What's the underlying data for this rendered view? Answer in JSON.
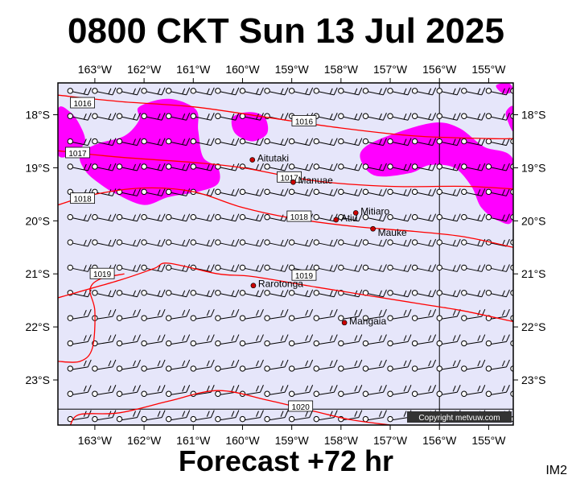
{
  "title": "0800 CKT Sun 13 Jul 2025",
  "subtitle": "Forecast +72 hr",
  "corner_label": "IM2",
  "copyright": "Copyright metvuw.com",
  "colors": {
    "sea": "#e6e6fa",
    "rain": "#ff00ff",
    "isobar": "#ff0000",
    "barb": "#000000",
    "place": "#cc0000"
  },
  "axes": {
    "lon_labels": [
      "163°W",
      "162°W",
      "161°W",
      "160°W",
      "159°W",
      "158°W",
      "157°W",
      "156°W",
      "155°W"
    ],
    "lat_labels": [
      "18°S",
      "19°S",
      "20°S",
      "21°S",
      "22°S",
      "23°S"
    ],
    "lon_range": [
      -163.75,
      -154.5
    ],
    "lat_range": [
      -17.4,
      -23.85
    ]
  },
  "places": [
    {
      "name": "Aitutaki",
      "lon": -159.8,
      "lat": -18.85
    },
    {
      "name": "Manuae",
      "lon": -158.97,
      "lat": -19.27
    },
    {
      "name": "Mitiaro",
      "lon": -157.7,
      "lat": -19.85
    },
    {
      "name": "Atiu",
      "lon": -158.1,
      "lat": -19.98
    },
    {
      "name": "Mauke",
      "lon": -157.35,
      "lat": -20.15
    },
    {
      "name": "Rarotonga",
      "lon": -159.78,
      "lat": -21.22
    },
    {
      "name": "Mangaia",
      "lon": -157.93,
      "lat": -21.92
    }
  ],
  "isobars": [
    {
      "label": "1016",
      "points": [
        [
          -163.75,
          -17.63
        ],
        [
          -162.5,
          -17.75
        ],
        [
          -161,
          -17.85
        ],
        [
          -159.5,
          -18.05
        ],
        [
          -158,
          -18.25
        ],
        [
          -156.5,
          -18.4
        ],
        [
          -155,
          -18.45
        ],
        [
          -154.5,
          -18.45
        ]
      ]
    },
    {
      "label": "1017",
      "points": [
        [
          -163.75,
          -18.68
        ],
        [
          -162.5,
          -18.8
        ],
        [
          -161,
          -18.9
        ],
        [
          -160,
          -19.0
        ],
        [
          -158.5,
          -19.25
        ],
        [
          -157,
          -19.35
        ],
        [
          -155.5,
          -19.35
        ],
        [
          -154.5,
          -19.4
        ]
      ]
    },
    {
      "label": "1018",
      "points": [
        [
          -163.75,
          -19.7
        ],
        [
          -163,
          -19.5
        ],
        [
          -162,
          -19.38
        ],
        [
          -161,
          -19.45
        ],
        [
          -160,
          -19.75
        ],
        [
          -159,
          -19.95
        ],
        [
          -157.8,
          -20.1
        ],
        [
          -156.5,
          -20.2
        ],
        [
          -155.5,
          -20.3
        ],
        [
          -154.5,
          -20.5
        ]
      ]
    },
    {
      "label": "1019",
      "points": [
        [
          -163.75,
          -21.45
        ],
        [
          -162.5,
          -21.12
        ],
        [
          -161.8,
          -20.9
        ],
        [
          -161.5,
          -20.8
        ],
        [
          -160.5,
          -21.0
        ],
        [
          -159.8,
          -21.05
        ],
        [
          -158.5,
          -21.25
        ],
        [
          -157.5,
          -21.4
        ],
        [
          -156.5,
          -21.55
        ],
        [
          -155.5,
          -21.7
        ],
        [
          -154.5,
          -21.9
        ]
      ]
    },
    {
      "label": "1020",
      "points": [
        [
          -163.75,
          -22.65
        ],
        [
          -163.3,
          -22.65
        ],
        [
          -163.05,
          -22.4
        ],
        [
          -163.0,
          -21.7
        ],
        [
          -163.1,
          -21.3
        ],
        [
          -162.9,
          -21.1
        ],
        [
          -162.4,
          -21.0
        ]
      ]
    },
    {
      "label": "1020",
      "points": [
        [
          -163.5,
          -23.85
        ],
        [
          -163.3,
          -23.65
        ],
        [
          -162.5,
          -23.62
        ],
        [
          -161.5,
          -23.4
        ],
        [
          -160.5,
          -23.2
        ],
        [
          -159.5,
          -23.38
        ],
        [
          -158.5,
          -23.6
        ],
        [
          -157.8,
          -23.75
        ],
        [
          -157,
          -23.85
        ]
      ]
    }
  ],
  "rain_areas": [
    [
      [
        -163.75,
        -17.9
      ],
      [
        -163.5,
        -17.95
      ],
      [
        -163.3,
        -18.2
      ],
      [
        -163.2,
        -18.5
      ],
      [
        -163.4,
        -18.7
      ],
      [
        -163.75,
        -18.75
      ]
    ],
    [
      [
        -162.1,
        -17.85
      ],
      [
        -161.5,
        -17.7
      ],
      [
        -160.95,
        -17.9
      ],
      [
        -160.9,
        -18.3
      ],
      [
        -160.8,
        -18.8
      ],
      [
        -160.5,
        -19.0
      ],
      [
        -160.5,
        -19.3
      ],
      [
        -160.9,
        -19.45
      ],
      [
        -161.5,
        -19.55
      ],
      [
        -162.0,
        -19.7
      ],
      [
        -162.55,
        -19.5
      ],
      [
        -162.9,
        -19.3
      ],
      [
        -163.2,
        -19.05
      ],
      [
        -163.3,
        -18.75
      ],
      [
        -162.95,
        -18.55
      ],
      [
        -162.4,
        -18.4
      ],
      [
        -162.1,
        -18.1
      ]
    ],
    [
      [
        -160.2,
        -18.05
      ],
      [
        -159.85,
        -17.95
      ],
      [
        -159.55,
        -18.05
      ],
      [
        -159.5,
        -18.35
      ],
      [
        -159.8,
        -18.5
      ],
      [
        -160.15,
        -18.35
      ]
    ],
    [
      [
        -157.5,
        -18.6
      ],
      [
        -156.9,
        -18.35
      ],
      [
        -156.1,
        -18.15
      ],
      [
        -155.6,
        -18.25
      ],
      [
        -155.1,
        -18.6
      ],
      [
        -154.5,
        -18.85
      ],
      [
        -154.5,
        -19.95
      ],
      [
        -154.8,
        -20.0
      ],
      [
        -155.15,
        -19.75
      ],
      [
        -155.35,
        -19.35
      ],
      [
        -155.7,
        -19.0
      ],
      [
        -156.2,
        -18.95
      ],
      [
        -156.6,
        -19.1
      ],
      [
        -157.3,
        -19.15
      ],
      [
        -157.6,
        -18.85
      ]
    ],
    [
      [
        -154.85,
        -17.45
      ],
      [
        -154.6,
        -17.4
      ],
      [
        -154.5,
        -17.55
      ],
      [
        -154.7,
        -17.6
      ]
    ],
    [
      [
        -154.65,
        -17.95
      ],
      [
        -154.5,
        -17.85
      ],
      [
        -154.5,
        -18.3
      ],
      [
        -154.6,
        -18.15
      ]
    ]
  ],
  "wind": {
    "lon_start": -163.5,
    "lon_step": 0.5,
    "lon_count": 19,
    "lat_start": -17.55,
    "lat_step": 0.476,
    "lat_count": 14,
    "direction_deg": 100,
    "calm_note": "o = calm station circle"
  }
}
